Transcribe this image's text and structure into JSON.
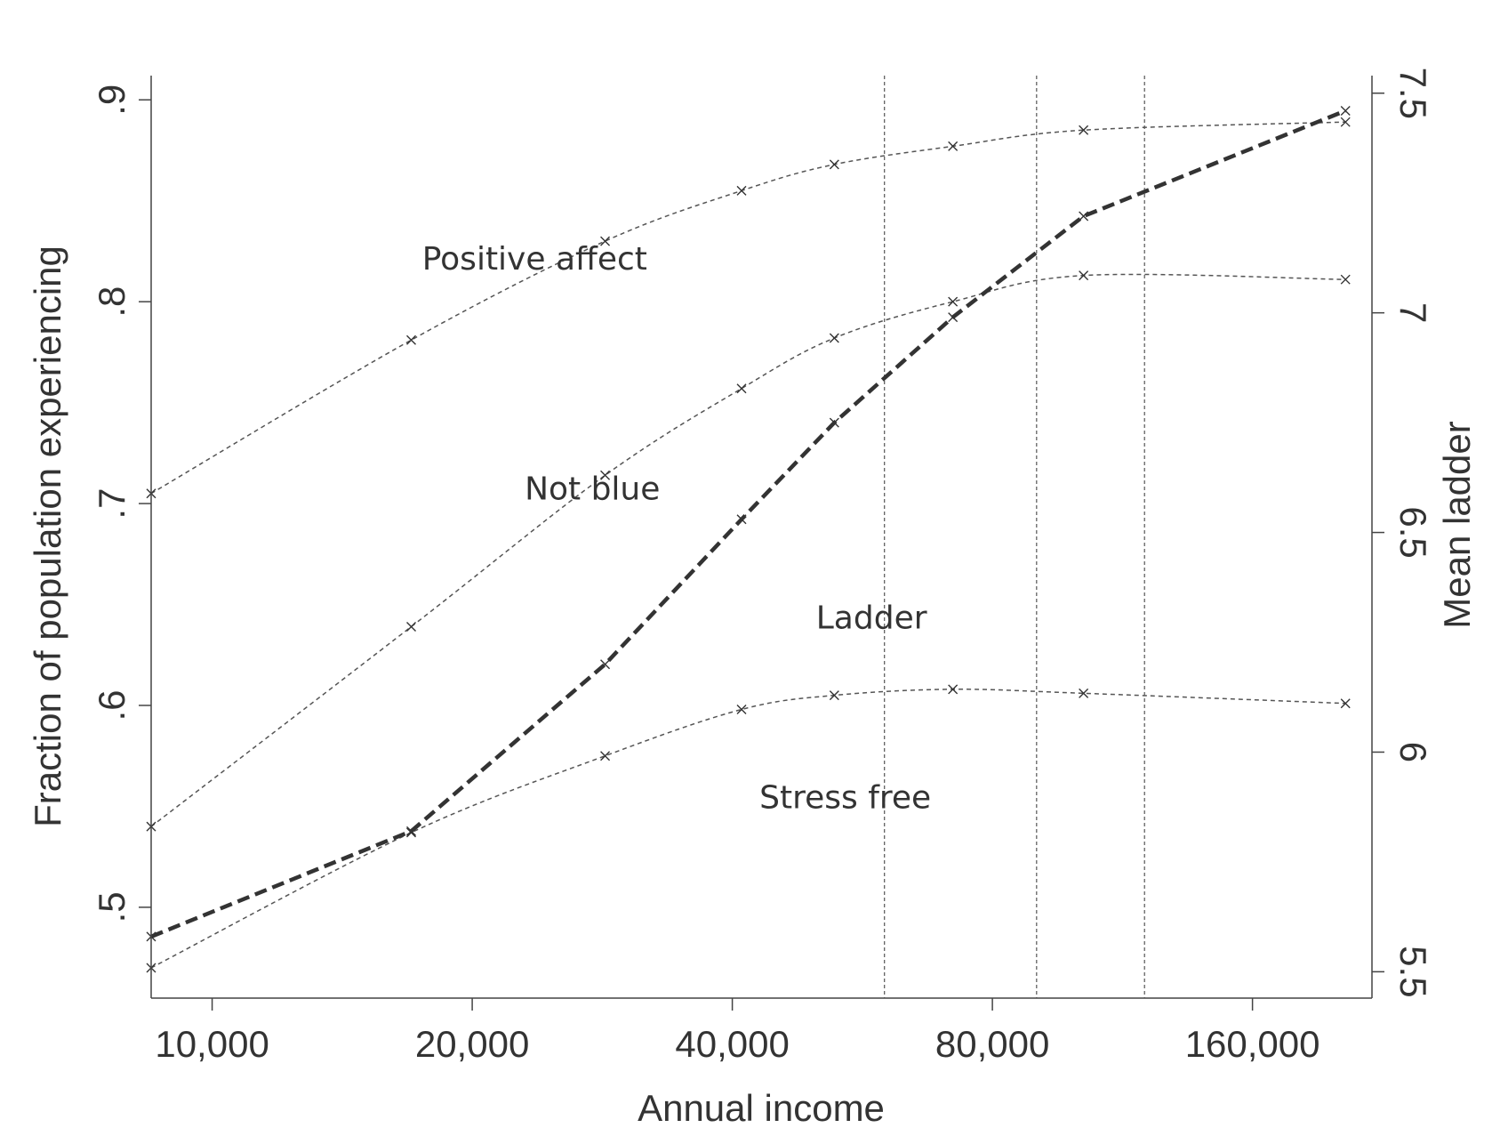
{
  "chart_data": {
    "type": "line",
    "xlabel": "Annual income",
    "ylabel": "Fraction of population experiencing",
    "ylabel_right": "Mean ladder",
    "x_scale": "log",
    "xlim": [
      8500,
      220000
    ],
    "ylim": [
      0.455,
      0.912
    ],
    "ylim_right": [
      5.44,
      7.54
    ],
    "x_ticks": [
      10000,
      20000,
      40000,
      80000,
      160000
    ],
    "x_tick_labels": [
      "10,000",
      "20,000",
      "40,000",
      "80,000",
      "160,000"
    ],
    "y_ticks": [
      0.5,
      0.6,
      0.7,
      0.8,
      0.9
    ],
    "y_tick_labels": [
      ".5",
      ".6",
      ".7",
      ".8",
      ".9"
    ],
    "y_ticks_right": [
      5.5,
      6,
      6.5,
      7,
      7.5
    ],
    "y_tick_labels_right": [
      "5.5",
      "6",
      "6.5",
      "7",
      "7.5"
    ],
    "vertical_reference_lines": [
      60000,
      90000,
      120000
    ],
    "x": [
      8500,
      17000,
      28500,
      41000,
      52500,
      72000,
      102000,
      205000
    ],
    "series": [
      {
        "name": "Positive affect",
        "axis": "left",
        "style": "thin-dashed",
        "marker": "x",
        "values": [
          0.705,
          0.781,
          0.83,
          0.855,
          0.868,
          0.877,
          0.885,
          0.889
        ]
      },
      {
        "name": "Not blue",
        "axis": "left",
        "style": "thin-dashed",
        "marker": "x",
        "values": [
          0.54,
          0.639,
          0.714,
          0.757,
          0.782,
          0.8,
          0.813,
          0.811
        ]
      },
      {
        "name": "Stress free",
        "axis": "left",
        "style": "thin-dashed",
        "marker": "x",
        "values": [
          0.47,
          0.537,
          0.575,
          0.598,
          0.605,
          0.608,
          0.606,
          0.601
        ]
      },
      {
        "name": "Ladder",
        "axis": "right",
        "style": "bold-dashed",
        "marker": "x",
        "values": [
          5.58,
          5.82,
          6.2,
          6.53,
          6.75,
          6.99,
          7.22,
          7.46
        ]
      }
    ],
    "series_labels": [
      {
        "text": "Positive affect",
        "x": 17500,
        "y": 0.816
      },
      {
        "text": "Not blue",
        "x": 23000,
        "y": 0.702
      },
      {
        "text": "Ladder",
        "x": 50000,
        "y": 0.638
      },
      {
        "text": "Stress free",
        "x": 43000,
        "y": 0.549
      }
    ]
  }
}
